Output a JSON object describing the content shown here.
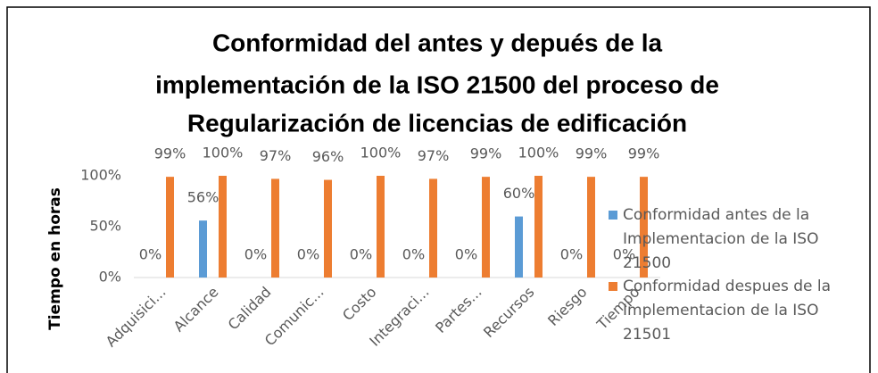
{
  "chart_data": {
    "type": "bar",
    "title": [
      "Conformidad del antes y depués de la",
      "implementación de la ISO 21500 del proceso de",
      "Regularización de licencias de edificación"
    ],
    "y_label": "Tiempo en horas",
    "categories": [
      "Adquisici...",
      "Alcance",
      "Calidad",
      "Comunic...",
      "Costo",
      "Integraci...",
      "Partes...",
      "Recursos",
      "Riesgo",
      "Tiempo"
    ],
    "ylim": [
      0,
      100
    ],
    "yticks": [
      {
        "value": 0,
        "label": "0%"
      },
      {
        "value": 50,
        "label": "50%"
      },
      {
        "value": 100,
        "label": "100%"
      }
    ],
    "grid": false,
    "legend": "right",
    "series": [
      {
        "name": "Conformidad antes de la Implementacion de la ISO 21500",
        "color": "#5b9bd5",
        "values": [
          0,
          56,
          0,
          0,
          0,
          0,
          0,
          60,
          0,
          0
        ],
        "value_labels": [
          "0%",
          "56%",
          "0%",
          "0%",
          "0%",
          "0%",
          "0%",
          "60%",
          "0%",
          "0%"
        ]
      },
      {
        "name": "Conformidad despues de la Implementacion de la ISO 21501",
        "color": "#ed7d31",
        "values": [
          99,
          100,
          97,
          96,
          100,
          97,
          99,
          100,
          99,
          99
        ],
        "value_labels": [
          "99%",
          "100%",
          "97%",
          "96%",
          "100%",
          "97%",
          "99%",
          "100%",
          "99%",
          "99%"
        ]
      }
    ]
  }
}
